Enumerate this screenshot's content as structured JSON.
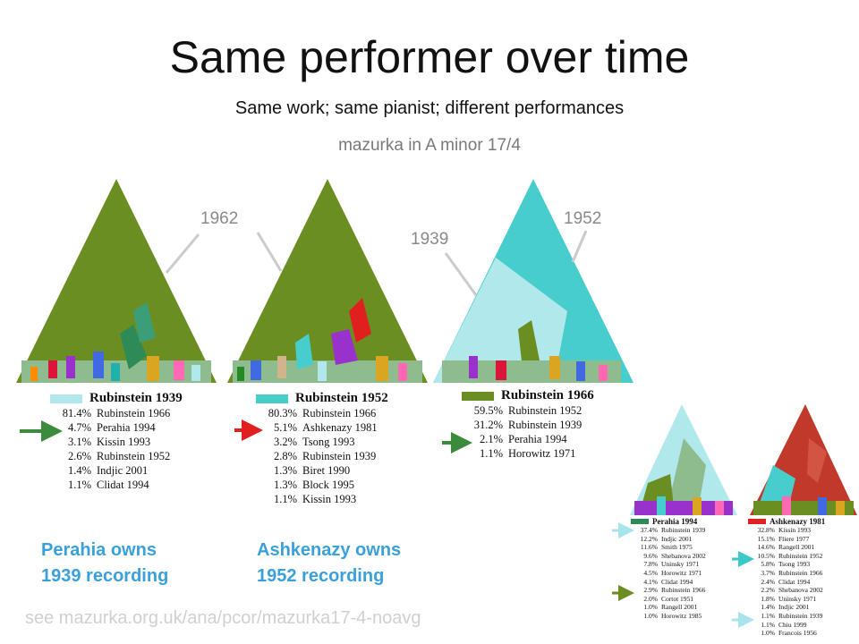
{
  "slide": {
    "title": "Same performer over time",
    "subtitle": "Same work; same pianist; different performances",
    "work": "mazurka in A minor 17/4",
    "footer": "see mazurka.org.uk/ana/pcor/mazurka17-4-noavg"
  },
  "year_labels": [
    "1962",
    "1939",
    "1952"
  ],
  "colors": {
    "olive": "#6b8e23",
    "light_cyan": "#b0e8ec",
    "teal": "#48cdcd",
    "brick": "#c0392b",
    "accent_text": "#3aa0dc",
    "arrow_green": "#3c8a3c",
    "arrow_red": "#e0201e",
    "arrow_teal": "#3cc8c8",
    "arrow_olive": "#6b8e23",
    "arrow_light": "#a8e4ec"
  },
  "panels": [
    {
      "heading": "Rubinstein 1939",
      "swatch": "#b0e8ec",
      "rows": [
        {
          "pct": "81.4%",
          "name": "Rubinstein 1966"
        },
        {
          "pct": "4.7%",
          "name": "Perahia 1994"
        },
        {
          "pct": "3.1%",
          "name": "Kissin 1993"
        },
        {
          "pct": "2.6%",
          "name": "Rubinstein 1952"
        },
        {
          "pct": "1.4%",
          "name": "Indjic 2001"
        },
        {
          "pct": "1.1%",
          "name": "Clidat 1994"
        }
      ]
    },
    {
      "heading": "Rubinstein 1952",
      "swatch": "#48cdcd",
      "rows": [
        {
          "pct": "80.3%",
          "name": "Rubinstein 1966"
        },
        {
          "pct": "5.1%",
          "name": "Ashkenazy 1981"
        },
        {
          "pct": "3.2%",
          "name": "Tsong 1993"
        },
        {
          "pct": "2.8%",
          "name": "Rubinstein 1939"
        },
        {
          "pct": "1.3%",
          "name": "Biret 1990"
        },
        {
          "pct": "1.3%",
          "name": "Block 1995"
        },
        {
          "pct": "1.1%",
          "name": "Kissin 1993"
        }
      ]
    },
    {
      "heading": "Rubinstein 1966",
      "swatch": "#6b8e23",
      "rows": [
        {
          "pct": "59.5%",
          "name": "Rubinstein 1952"
        },
        {
          "pct": "31.2%",
          "name": "Rubinstein 1939"
        },
        {
          "pct": "2.1%",
          "name": "Perahia 1994"
        },
        {
          "pct": "1.1%",
          "name": "Horowitz 1971"
        }
      ]
    },
    {
      "heading": "Perahia 1994",
      "swatch": "#2e8b57",
      "rows": [
        {
          "pct": "37.4%",
          "name": "Rubinstein 1939"
        },
        {
          "pct": "12.2%",
          "name": "Indjic 2001"
        },
        {
          "pct": "11.6%",
          "name": "Smith 1975"
        },
        {
          "pct": "9.6%",
          "name": "Shebanova 2002"
        },
        {
          "pct": "7.8%",
          "name": "Uninsky 1971"
        },
        {
          "pct": "4.5%",
          "name": "Horowitz 1971"
        },
        {
          "pct": "4.1%",
          "name": "Clidat 1994"
        },
        {
          "pct": "2.9%",
          "name": "Rubinstein 1966"
        },
        {
          "pct": "2.0%",
          "name": "Cortot 1951"
        },
        {
          "pct": "1.0%",
          "name": "Rangell 2001"
        },
        {
          "pct": "1.0%",
          "name": "Horowitz 1985"
        }
      ]
    },
    {
      "heading": "Ashkenazy 1981",
      "swatch": "#e0201e",
      "rows": [
        {
          "pct": "32.8%",
          "name": "Kissin 1993"
        },
        {
          "pct": "15.1%",
          "name": "Fliere 1977"
        },
        {
          "pct": "14.6%",
          "name": "Rangell 2001"
        },
        {
          "pct": "10.5%",
          "name": "Rubinstein 1952"
        },
        {
          "pct": "5.8%",
          "name": "Tsong 1993"
        },
        {
          "pct": "3.7%",
          "name": "Rubinstein 1966"
        },
        {
          "pct": "2.4%",
          "name": "Clidat 1994"
        },
        {
          "pct": "2.2%",
          "name": "Shebanova 2002"
        },
        {
          "pct": "1.8%",
          "name": "Uninsky 1971"
        },
        {
          "pct": "1.4%",
          "name": "Indjic 2001"
        },
        {
          "pct": "1.1%",
          "name": "Rubinstein 1939"
        },
        {
          "pct": "1.1%",
          "name": "Chiu 1999"
        },
        {
          "pct": "1.0%",
          "name": "Francois 1956"
        }
      ]
    }
  ],
  "owns": [
    {
      "line1": "Perahia owns",
      "line2": "1939 recording"
    },
    {
      "line1": "Ashkenazy owns",
      "line2": "1952 recording"
    }
  ]
}
